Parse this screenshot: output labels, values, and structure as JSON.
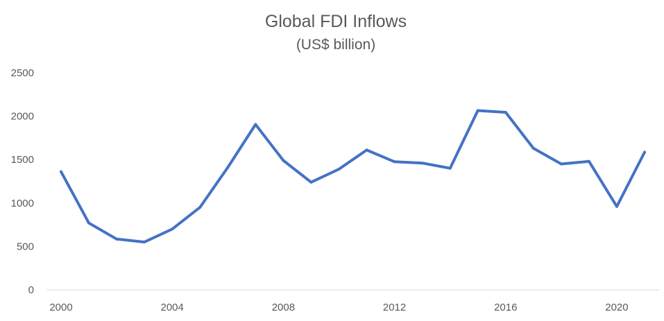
{
  "chart_data": {
    "type": "line",
    "title": "Global FDI Inflows",
    "subtitle": "(US$ billion)",
    "xlabel": "",
    "ylabel": "",
    "x": [
      2000,
      2001,
      2002,
      2003,
      2004,
      2005,
      2006,
      2007,
      2008,
      2009,
      2010,
      2011,
      2012,
      2013,
      2014,
      2015,
      2016,
      2017,
      2018,
      2019,
      2020,
      2021
    ],
    "series": [
      {
        "values": [
          1360,
          770,
          585,
          550,
          700,
          950,
          1410,
          1905,
          1490,
          1240,
          1390,
          1610,
          1475,
          1460,
          1400,
          2065,
          2045,
          1630,
          1450,
          1480,
          960,
          1585
        ],
        "color": "#4472C4"
      }
    ],
    "yticks": [
      "0",
      "500",
      "1000",
      "1500",
      "2000",
      "2500"
    ],
    "xticks": [
      "2000",
      "2004",
      "2008",
      "2012",
      "2016",
      "2020"
    ],
    "ylim": [
      0,
      2500
    ],
    "grid": false,
    "legend": "none",
    "axis_color": "#D9D9D9",
    "text_color": "#595959"
  }
}
